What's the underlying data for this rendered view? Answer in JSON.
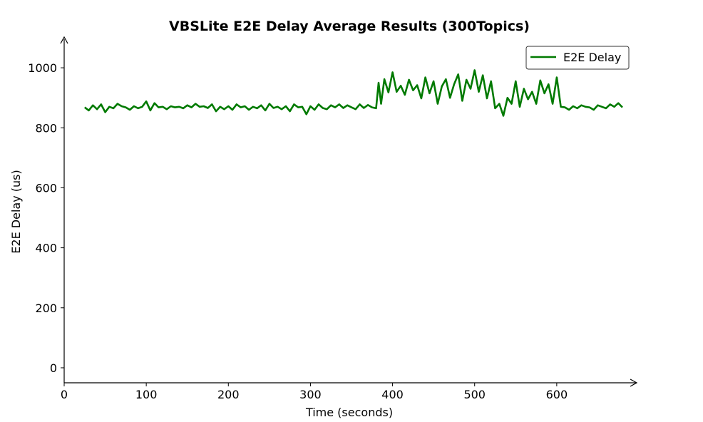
{
  "chart_data": {
    "type": "line",
    "title": "VBSLite E2E Delay Average Results (300Topics)",
    "xlabel": "Time (seconds)",
    "ylabel": "E2E Delay (us)",
    "xlim": [
      0,
      700
    ],
    "ylim": [
      -50,
      1100
    ],
    "xticks": [
      "0",
      "100",
      "200",
      "300",
      "400",
      "500",
      "600"
    ],
    "xtick_values": [
      0,
      100,
      200,
      300,
      400,
      500,
      600
    ],
    "yticks": [
      "0",
      "200",
      "400",
      "600",
      "800",
      "1000"
    ],
    "ytick_values": [
      0,
      200,
      400,
      600,
      800,
      1000
    ],
    "grid": false,
    "legend": {
      "position": "top-right",
      "entries": [
        "E2E Delay"
      ]
    },
    "colors": {
      "line": "#007a00",
      "axis": "#000000",
      "legend_border": "#333333"
    },
    "series": [
      {
        "name": "E2E Delay",
        "x": [
          25,
          30,
          35,
          40,
          45,
          50,
          55,
          60,
          65,
          70,
          75,
          80,
          85,
          90,
          95,
          100,
          105,
          110,
          115,
          120,
          125,
          130,
          135,
          140,
          145,
          150,
          155,
          160,
          165,
          170,
          175,
          180,
          185,
          190,
          195,
          200,
          205,
          210,
          215,
          220,
          225,
          230,
          235,
          240,
          245,
          250,
          255,
          260,
          265,
          270,
          275,
          280,
          285,
          290,
          295,
          300,
          305,
          310,
          315,
          320,
          325,
          330,
          335,
          340,
          345,
          350,
          355,
          360,
          365,
          370,
          375,
          380,
          383,
          386,
          390,
          395,
          400,
          405,
          410,
          415,
          420,
          425,
          430,
          435,
          440,
          445,
          450,
          455,
          460,
          465,
          470,
          475,
          480,
          485,
          490,
          495,
          500,
          505,
          510,
          515,
          520,
          525,
          530,
          535,
          540,
          545,
          550,
          555,
          560,
          565,
          570,
          575,
          580,
          585,
          590,
          595,
          600,
          605,
          610,
          615,
          620,
          625,
          630,
          635,
          640,
          645,
          650,
          655,
          660,
          665,
          670,
          675,
          680
        ],
        "y": [
          868,
          858,
          875,
          862,
          878,
          852,
          870,
          865,
          880,
          872,
          868,
          860,
          872,
          865,
          870,
          888,
          858,
          882,
          868,
          870,
          862,
          872,
          868,
          870,
          865,
          875,
          868,
          880,
          870,
          872,
          866,
          878,
          855,
          870,
          862,
          872,
          860,
          878,
          868,
          872,
          860,
          870,
          865,
          875,
          858,
          880,
          866,
          870,
          862,
          872,
          855,
          878,
          868,
          870,
          845,
          872,
          860,
          878,
          866,
          862,
          875,
          868,
          878,
          866,
          875,
          868,
          862,
          878,
          866,
          876,
          868,
          865,
          950,
          880,
          962,
          918,
          985,
          920,
          940,
          910,
          960,
          925,
          942,
          898,
          968,
          915,
          955,
          880,
          938,
          962,
          900,
          945,
          978,
          890,
          960,
          930,
          992,
          920,
          975,
          898,
          955,
          865,
          880,
          840,
          900,
          880,
          955,
          870,
          930,
          895,
          920,
          880,
          958,
          915,
          945,
          880,
          968,
          870,
          868,
          860,
          872,
          865,
          875,
          870,
          868,
          860,
          875,
          870,
          865,
          878,
          870,
          882,
          868
        ]
      }
    ]
  }
}
